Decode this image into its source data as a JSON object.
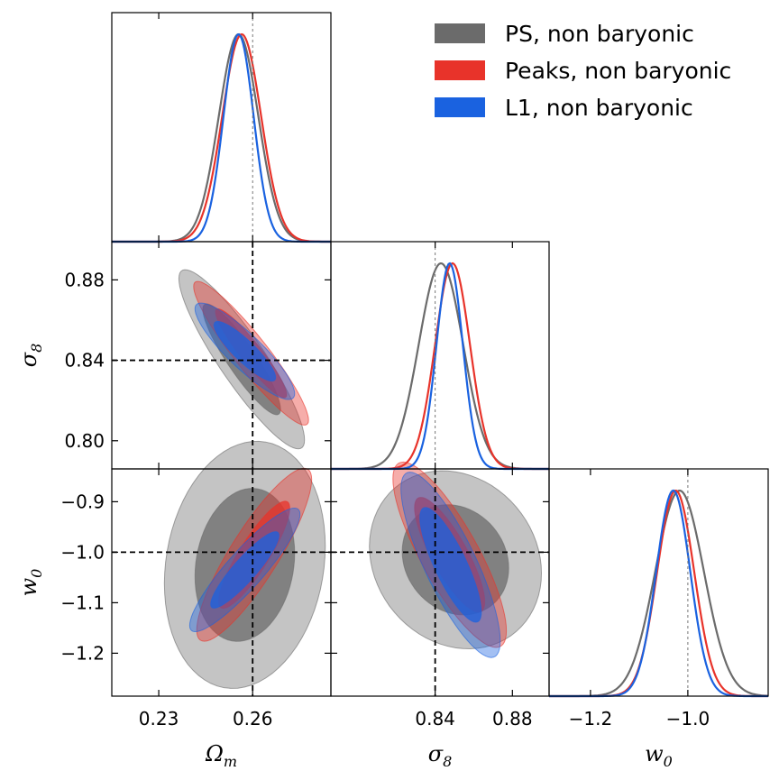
{
  "chart_data": {
    "type": "corner",
    "title": "",
    "parameters": [
      {
        "id": "omega_m",
        "label": "Ω",
        "sub": "m",
        "range": [
          0.215,
          0.285
        ],
        "ticks": [
          0.23,
          0.26
        ],
        "tick_labels": [
          "0.23",
          "0.26"
        ],
        "fiducial": 0.26
      },
      {
        "id": "sigma_8",
        "label": "σ",
        "sub": "8",
        "range": [
          0.786,
          0.899
        ],
        "ticks": [
          0.8,
          0.84,
          0.88
        ],
        "tick_labels": [
          "0.80",
          "0.84",
          "0.88"
        ],
        "x_ticks": [
          0.84,
          0.88
        ],
        "x_tick_labels": [
          "0.84",
          "0.88"
        ],
        "fiducial": 0.84
      },
      {
        "id": "w_0",
        "label": "w",
        "sub": "0",
        "range": [
          -1.285,
          -0.835
        ],
        "ticks": [
          -1.2,
          -1.1,
          -1.0,
          -0.9
        ],
        "tick_labels": [
          "−1.2",
          "−1.1",
          "−1.0",
          "−0.9"
        ],
        "x_ticks": [
          -1.2,
          -1.0
        ],
        "x_tick_labels": [
          "−1.2",
          "−1.0"
        ],
        "fiducial": -1.0
      }
    ],
    "series": [
      {
        "name": "PS, non baryonic",
        "color": "#6b6b6b",
        "fill": "#6b6b6b",
        "marginals": {
          "omega_m": {
            "mean": 0.2555,
            "sd": 0.0063
          },
          "sigma_8": {
            "mean": 0.843,
            "sd": 0.0115
          },
          "w_0": {
            "mean": -1.017,
            "sd": 0.05
          }
        },
        "pairs": {
          "omega_m|sigma_8": {
            "mean": [
              0.2565,
              0.8405
            ],
            "sd": [
              0.0082,
              0.0182
            ],
            "rho": -0.9
          },
          "omega_m|w_0": {
            "mean": [
              0.2575,
              -1.025
            ],
            "sd": [
              0.0105,
              0.1
            ],
            "rho": 0.15
          },
          "sigma_8|w_0": {
            "mean": [
              0.8505,
              -1.015
            ],
            "sd": [
              0.0182,
              0.072
            ],
            "rho": -0.15
          }
        }
      },
      {
        "name": "Peaks, non baryonic",
        "color": "#e8332a",
        "fill": "#e8332a",
        "marginals": {
          "omega_m": {
            "mean": 0.2565,
            "sd": 0.0062
          },
          "sigma_8": {
            "mean": 0.849,
            "sd": 0.009
          },
          "w_0": {
            "mean": -1.025,
            "sd": 0.038
          }
        },
        "pairs": {
          "omega_m|sigma_8": {
            "mean": [
              0.2595,
              0.8435
            ],
            "sd": [
              0.0075,
              0.0146
            ],
            "rho": -0.93
          },
          "omega_m|w_0": {
            "mean": [
              0.2605,
              -1.005
            ],
            "sd": [
              0.0075,
              0.07
            ],
            "rho": 0.87
          },
          "sigma_8|w_0": {
            "mean": [
              0.8475,
              -1.005
            ],
            "sd": [
              0.012,
              0.075
            ],
            "rho": -0.82
          }
        }
      },
      {
        "name": "L1, non baryonic",
        "color": "#1a62e0",
        "fill": "#1a62e0",
        "marginals": {
          "omega_m": {
            "mean": 0.2555,
            "sd": 0.0048
          },
          "sigma_8": {
            "mean": 0.8475,
            "sd": 0.0068
          },
          "w_0": {
            "mean": -1.03,
            "sd": 0.035
          }
        },
        "pairs": {
          "omega_m|sigma_8": {
            "mean": [
              0.2575,
              0.8445
            ],
            "sd": [
              0.0065,
              0.0098
            ],
            "rho": -0.88
          },
          "omega_m|w_0": {
            "mean": [
              0.2575,
              -1.035
            ],
            "sd": [
              0.0072,
              0.05
            ],
            "rho": 0.9
          },
          "sigma_8|w_0": {
            "mean": [
              0.848,
              -1.025
            ],
            "sd": [
              0.0105,
              0.075
            ],
            "rho": -0.82
          }
        }
      }
    ],
    "legend": {
      "placement": "top-right"
    }
  }
}
